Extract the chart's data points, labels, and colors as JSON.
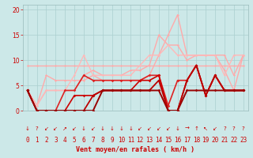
{
  "xlabel": "Vent moyen/en rafales ( km/h )",
  "ylim": [
    0,
    21
  ],
  "xlim": [
    -0.5,
    23.5
  ],
  "yticks": [
    0,
    5,
    10,
    15,
    20
  ],
  "xticks": [
    0,
    1,
    2,
    3,
    4,
    5,
    6,
    7,
    8,
    9,
    10,
    11,
    12,
    13,
    14,
    15,
    16,
    17,
    18,
    19,
    20,
    21,
    22,
    23
  ],
  "bg_color": "#cce8e8",
  "grid_color": "#aacfcf",
  "series": [
    {
      "x": [
        0,
        1,
        2,
        3,
        4,
        5,
        6,
        7,
        8,
        9,
        10,
        11,
        12,
        13,
        14,
        15,
        16,
        17,
        18,
        19,
        20,
        21,
        22,
        23
      ],
      "y": [
        9,
        9,
        9,
        9,
        9,
        9,
        9,
        9,
        9,
        9,
        9,
        9,
        9,
        9,
        9,
        9,
        9,
        9,
        9,
        9,
        9,
        9,
        9,
        9
      ],
      "color": "#ffaaaa",
      "lw": 1.0,
      "marker": "D",
      "ms": 1.5
    },
    {
      "x": [
        0,
        1,
        2,
        3,
        4,
        5,
        6,
        7,
        8,
        9,
        10,
        11,
        12,
        13,
        14,
        15,
        16,
        17,
        18,
        19,
        20,
        21,
        22,
        23
      ],
      "y": [
        4,
        1,
        4,
        4,
        4,
        4,
        7,
        8,
        7,
        7,
        7,
        8,
        8,
        9,
        15,
        13,
        13,
        10,
        11,
        11,
        11,
        8,
        4,
        11
      ],
      "color": "#ffaaaa",
      "lw": 1.0,
      "marker": "D",
      "ms": 1.5
    },
    {
      "x": [
        0,
        1,
        2,
        3,
        4,
        5,
        6,
        7,
        8,
        9,
        10,
        11,
        12,
        13,
        14,
        15,
        16,
        17,
        18,
        19,
        20,
        21,
        22,
        23
      ],
      "y": [
        4,
        1,
        7,
        6,
        6,
        6,
        6,
        7,
        6,
        6,
        6,
        6,
        6,
        7,
        11,
        15,
        19,
        11,
        11,
        11,
        11,
        11,
        7,
        11
      ],
      "color": "#ffaaaa",
      "lw": 1.0,
      "marker": "D",
      "ms": 1.5
    },
    {
      "x": [
        0,
        1,
        2,
        3,
        4,
        5,
        6,
        7,
        8,
        9,
        10,
        11,
        12,
        13,
        14,
        15,
        16,
        17,
        18,
        19,
        20,
        21,
        22,
        23
      ],
      "y": [
        4,
        1,
        4,
        4,
        4,
        7,
        11,
        7,
        7,
        7,
        7,
        7,
        9,
        11,
        11,
        13,
        11,
        11,
        11,
        11,
        11,
        7,
        11,
        11
      ],
      "color": "#ffb8b8",
      "lw": 1.0,
      "marker": "D",
      "ms": 1.5
    },
    {
      "x": [
        0,
        1,
        2,
        3,
        4,
        5,
        6,
        7,
        8,
        9,
        10,
        11,
        12,
        13,
        14,
        15,
        16,
        17,
        18,
        19,
        20,
        21,
        22,
        23
      ],
      "y": [
        4,
        0,
        0,
        0,
        4,
        4,
        7,
        6,
        6,
        6,
        6,
        6,
        6,
        7,
        7,
        1,
        6,
        6,
        9,
        3,
        7,
        4,
        4,
        4
      ],
      "color": "#dd2222",
      "lw": 1.2,
      "marker": "D",
      "ms": 1.8
    },
    {
      "x": [
        0,
        1,
        2,
        3,
        4,
        5,
        6,
        7,
        8,
        9,
        10,
        11,
        12,
        13,
        14,
        15,
        16,
        17,
        18,
        19,
        20,
        21,
        22,
        23
      ],
      "y": [
        4,
        0,
        0,
        0,
        0,
        3,
        3,
        3,
        4,
        4,
        4,
        4,
        6,
        6,
        7,
        0,
        0,
        6,
        9,
        3,
        7,
        4,
        4,
        4
      ],
      "color": "#cc0000",
      "lw": 1.2,
      "marker": "D",
      "ms": 1.8
    },
    {
      "x": [
        0,
        1,
        2,
        3,
        4,
        5,
        6,
        7,
        8,
        9,
        10,
        11,
        12,
        13,
        14,
        15,
        16,
        17,
        18,
        19,
        20,
        21,
        22,
        23
      ],
      "y": [
        4,
        0,
        0,
        0,
        0,
        0,
        0,
        3,
        4,
        4,
        4,
        4,
        4,
        4,
        6,
        0,
        0,
        6,
        9,
        3,
        7,
        4,
        4,
        4
      ],
      "color": "#bb0000",
      "lw": 1.3,
      "marker": "D",
      "ms": 1.8
    },
    {
      "x": [
        0,
        1,
        2,
        3,
        4,
        5,
        6,
        7,
        8,
        9,
        10,
        11,
        12,
        13,
        14,
        15,
        16,
        17,
        18,
        19,
        20,
        21,
        22,
        23
      ],
      "y": [
        4,
        0,
        0,
        0,
        0,
        0,
        0,
        0,
        4,
        4,
        4,
        4,
        4,
        4,
        4,
        0,
        0,
        4,
        4,
        4,
        4,
        4,
        4,
        4
      ],
      "color": "#990000",
      "lw": 1.4,
      "marker": "D",
      "ms": 1.8
    }
  ],
  "wind_arrows": [
    "↓",
    "?",
    "↙",
    "↙",
    "↗",
    "↙",
    "↓",
    "↙",
    "↓",
    "↓",
    "↓",
    "↓",
    "↙",
    "↙",
    "↙",
    "↙",
    "↓",
    "→",
    "↑",
    "↖",
    "↙",
    "?",
    "?",
    "?"
  ],
  "label_fontsize": 6,
  "tick_fontsize": 5.5,
  "arrow_fontsize": 5
}
